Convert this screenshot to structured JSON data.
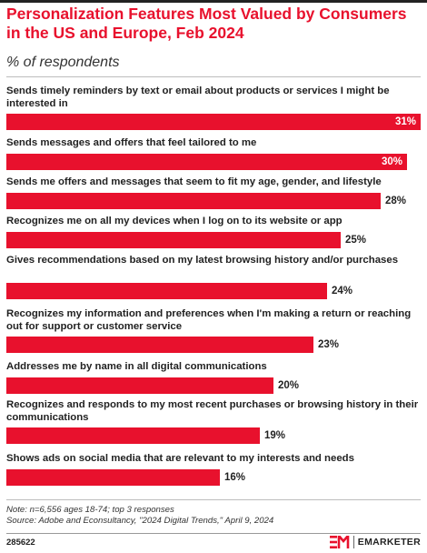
{
  "header": {
    "title": "Personalization Features Most Valued by Consumers in the US and Europe, Feb 2024",
    "subtitle": "% of respondents"
  },
  "chart_data": {
    "type": "bar",
    "orientation": "horizontal",
    "title": "Personalization Features Most Valued by Consumers in the US and Europe, Feb 2024",
    "subtitle": "% of respondents",
    "value_suffix": "%",
    "xlim": [
      0,
      31
    ],
    "grid": false,
    "legend": "none",
    "bar_color": "#e8112d",
    "categories": [
      "Sends timely reminders by text or email about products or services I might be interested in",
      "Sends messages and offers that feel tailored to me",
      "Sends me offers and messages that seem to fit my age, gender, and lifestyle",
      "Recognizes me on all my devices when I log on to its website or app",
      "Gives recommendations based on my latest browsing history and/or purchases",
      "Recognizes my information and preferences when I'm making a return or reaching out for support or customer service",
      "Addresses me by name in all digital communications",
      "Recognizes and responds to my most recent purchases or browsing history in their communications",
      "Shows ads on social media that are relevant to my interests and needs"
    ],
    "values": [
      31,
      30,
      28,
      25,
      24,
      23,
      20,
      19,
      16
    ]
  },
  "footer": {
    "note": "Note: n=6,556 ages 18-74; top 3 responses",
    "source": "Source: Adobe and Econsultancy, \"2024 Digital Trends,\" April 9, 2024",
    "chart_id": "285622",
    "brand_name": "EMARKETER",
    "brand_logo_icon": "em-logo-icon"
  },
  "colors": {
    "accent": "#e8112d",
    "text": "#222222"
  }
}
